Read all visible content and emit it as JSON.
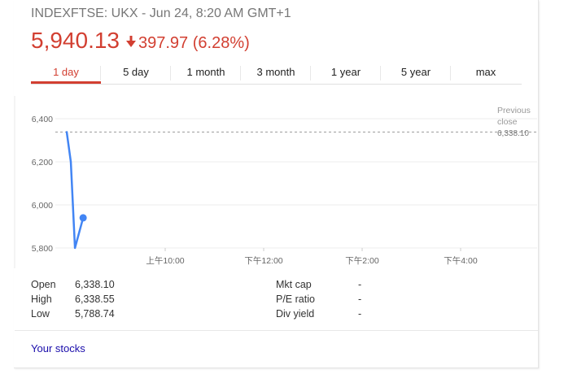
{
  "header": {
    "subtitle": "INDEXFTSE: UKX - Jun 24, 8:20 AM GMT+1",
    "price": "5,940.13",
    "change": "397.97 (6.28%)",
    "accent_color": "#d23f31",
    "arrow_icon": "down-arrow-icon"
  },
  "tabs": [
    {
      "label": "1 day",
      "active": true
    },
    {
      "label": "5 day",
      "active": false
    },
    {
      "label": "1 month",
      "active": false
    },
    {
      "label": "3 month",
      "active": false
    },
    {
      "label": "1 year",
      "active": false
    },
    {
      "label": "5 year",
      "active": false
    },
    {
      "label": "max",
      "active": false
    }
  ],
  "chart_data": {
    "type": "line",
    "y_ticks": [
      "6,400",
      "6,200",
      "6,000",
      "5,800"
    ],
    "y_tick_values": [
      6400,
      6200,
      6000,
      5800
    ],
    "ylim": [
      5780,
      6420
    ],
    "x_ticks": [
      "上午10:00",
      "下午12:00",
      "下午2:00",
      "下午4:00"
    ],
    "x_tick_hours": [
      10,
      12,
      14,
      16
    ],
    "xlim_hours": [
      8,
      16.5
    ],
    "series": [
      {
        "color": "#4285f4",
        "x_hours": [
          8.0,
          8.083,
          8.167,
          8.25,
          8.333
        ],
        "values": [
          6338,
          6200,
          5800,
          5870,
          5940
        ]
      }
    ],
    "previous_close": {
      "label_line1": "Previous",
      "label_line2": "close",
      "value": "6,338.10",
      "numeric": 6338.1
    },
    "grid": true
  },
  "stats": {
    "left": [
      {
        "label": "Open",
        "value": "6,338.10"
      },
      {
        "label": "High",
        "value": "6,338.55"
      },
      {
        "label": "Low",
        "value": "5,788.74"
      }
    ],
    "right": [
      {
        "label": "Mkt cap",
        "value": "-"
      },
      {
        "label": "P/E ratio",
        "value": "-"
      },
      {
        "label": "Div yield",
        "value": "-"
      }
    ]
  },
  "footer": {
    "your_stocks": "Your stocks"
  }
}
